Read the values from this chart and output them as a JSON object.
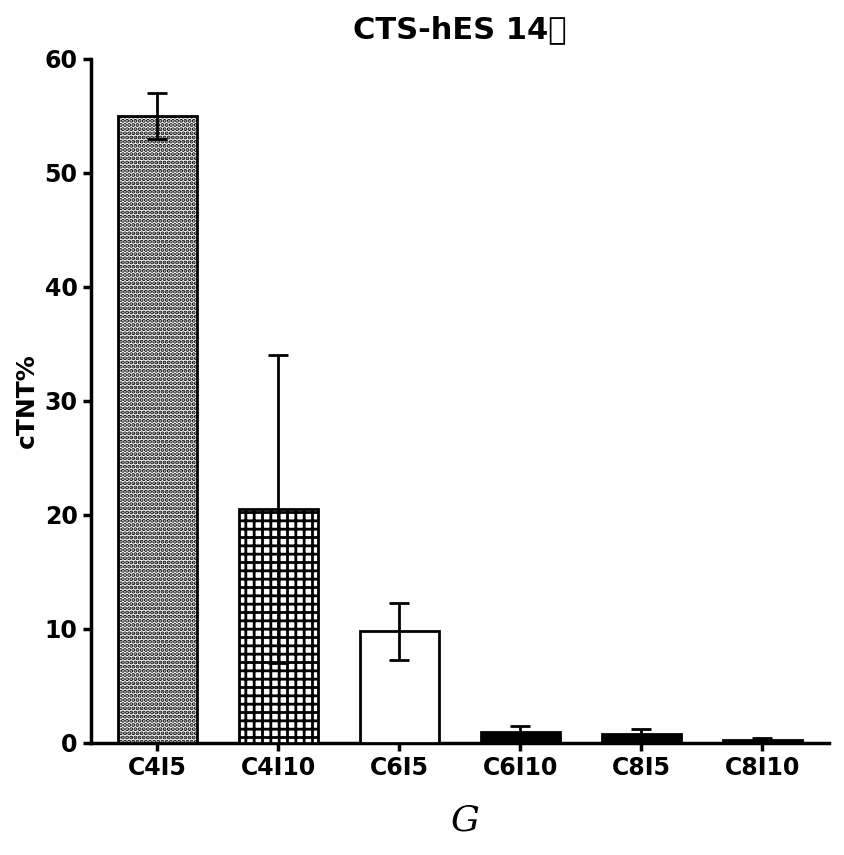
{
  "title": "CTS-hES 14天",
  "ylabel": "cTNT%",
  "categories": [
    "C4I5",
    "C4I10",
    "C6I5",
    "C6I10",
    "C8I5",
    "C8I10"
  ],
  "values": [
    55.0,
    20.5,
    9.8,
    1.0,
    0.8,
    0.3
  ],
  "errors": [
    2.0,
    13.5,
    2.5,
    0.5,
    0.4,
    0.15
  ],
  "ylim": [
    0,
    60
  ],
  "yticks": [
    0,
    10,
    20,
    30,
    40,
    50,
    60
  ],
  "background_color": "#ffffff",
  "title_fontsize": 22,
  "axis_fontsize": 18,
  "tick_fontsize": 17,
  "label_G": "G",
  "label_G_fontsize": 26,
  "bar_width": 0.65,
  "hatch_patterns": [
    "....",
    "++",
    "=====",
    "xxxx",
    "xxxx",
    "xxxx"
  ],
  "bar_colors": [
    "#1a1a1a",
    "#1a1a1a",
    "#e0e0e0",
    "#000000",
    "#000000",
    "#000000"
  ],
  "bar_face_colors": [
    "white",
    "white",
    "white",
    "black",
    "black",
    "black"
  ]
}
